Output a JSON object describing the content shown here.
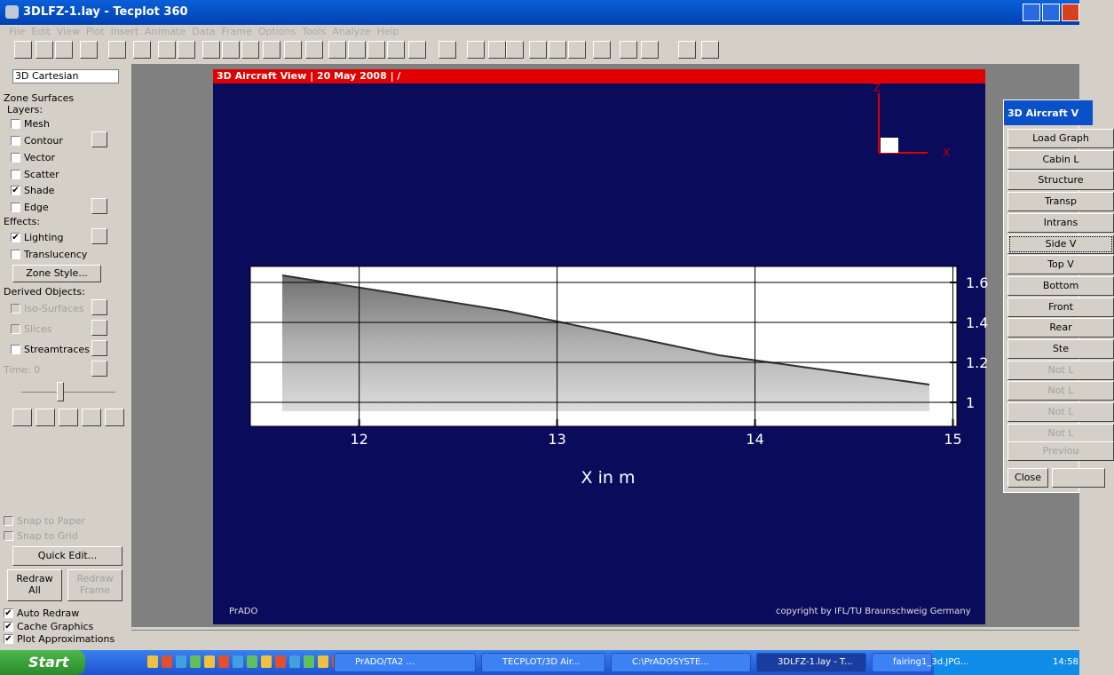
{
  "window": {
    "title": "3DLFZ-1.lay - Tecplot 360"
  },
  "menu": [
    "File",
    "Edit",
    "View",
    "Plot",
    "Insert",
    "Animate",
    "Data",
    "Frame",
    "Options",
    "Tools",
    "Analyze",
    "Help"
  ],
  "sidebar": {
    "plot_type": "3D Cartesian",
    "zone_surfaces": "Zone Surfaces",
    "layers_label": "Layers:",
    "layers": [
      {
        "label": "Mesh",
        "checked": false
      },
      {
        "label": "Contour",
        "checked": false
      },
      {
        "label": "Vector",
        "checked": false
      },
      {
        "label": "Scatter",
        "checked": false
      },
      {
        "label": "Shade",
        "checked": true
      },
      {
        "label": "Edge",
        "checked": false
      }
    ],
    "effects_label": "Effects:",
    "effects": [
      {
        "label": "Lighting",
        "checked": true
      },
      {
        "label": "Translucency",
        "checked": false
      }
    ],
    "zone_style": "Zone Style...",
    "derived_label": "Derived Objects:",
    "derived": [
      {
        "label": "Iso-Surfaces",
        "checked": false,
        "enabled": false
      },
      {
        "label": "Slices",
        "checked": false,
        "enabled": false
      },
      {
        "label": "Streamtraces",
        "checked": false,
        "enabled": true
      }
    ],
    "time": "Time: 0",
    "snap": [
      {
        "label": "Snap to Paper",
        "checked": false,
        "enabled": false
      },
      {
        "label": "Snap to Grid",
        "checked": false,
        "enabled": false
      }
    ],
    "quick_edit": "Quick Edit...",
    "redraw_all": "Redraw All",
    "redraw_frame": "Redraw Frame",
    "options": [
      {
        "label": "Auto Redraw",
        "checked": true
      },
      {
        "label": "Cache Graphics",
        "checked": true
      },
      {
        "label": "Plot Approximations",
        "checked": true
      }
    ]
  },
  "frame": {
    "header": "3D Aircraft View | 20 May 2008 | /",
    "axis_z": "Z",
    "axis_x": "X",
    "plot": {
      "xlim": [
        11.45,
        15.02
      ],
      "ylim": [
        0.88,
        1.68
      ],
      "xticks": [
        12,
        13,
        14,
        15
      ],
      "yticks": [
        1,
        1.2,
        1.4,
        1.6
      ],
      "xlabel": "X  in m",
      "grid": true
    },
    "footer_left": "PrADO",
    "footer_right": "copyright by IFL/TU Braunschweig Germany"
  },
  "dialog": {
    "title": "3D Aircraft V",
    "buttons": [
      {
        "label": "Load Graph",
        "enabled": true
      },
      {
        "label": "Cabin L",
        "enabled": true
      },
      {
        "label": "Structure",
        "enabled": true
      },
      {
        "label": "Transp",
        "enabled": true
      },
      {
        "label": "Intrans",
        "enabled": true
      },
      {
        "label": "Side V",
        "enabled": true
      },
      {
        "label": "Top V",
        "enabled": true
      },
      {
        "label": "Bottom",
        "enabled": true
      },
      {
        "label": "Front",
        "enabled": true
      },
      {
        "label": "Rear",
        "enabled": true
      },
      {
        "label": "Ste",
        "enabled": true
      },
      {
        "label": "Not L",
        "enabled": false
      },
      {
        "label": "Not L",
        "enabled": false
      },
      {
        "label": "Not L",
        "enabled": false
      },
      {
        "label": "Not L",
        "enabled": false
      }
    ],
    "previous": "Previou",
    "close": "Close"
  },
  "taskbar": {
    "start": "Start",
    "tasks": [
      "PrADO/TA2 ...",
      "TECPLOT/3D Air...",
      "C:\\PrADOSYSTE...",
      "3DLFZ-1.lay - T...",
      "fairing1_3d.JPG..."
    ],
    "clock": "14:58"
  }
}
